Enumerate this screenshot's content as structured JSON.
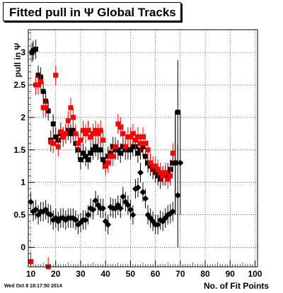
{
  "chart_data": {
    "type": "scatter",
    "title": "Fitted pull in Ψ   Global Tracks",
    "xlabel": "No. of Fit Points",
    "ylabel": "pull in Ψ",
    "footer": "Wed Oct  8 18:17:50 2014",
    "xlim": [
      9,
      101
    ],
    "ylim": [
      -0.3,
      3.35
    ],
    "xticks": [
      10,
      20,
      30,
      40,
      50,
      60,
      70,
      80,
      90,
      100
    ],
    "yticks": [
      0,
      0.5,
      1,
      1.5,
      2,
      2.5,
      3
    ],
    "grid": true,
    "series": [
      {
        "marker": "square",
        "color": "#000000",
        "points": [
          [
            10.5,
            3.0
          ],
          [
            11,
            3.03
          ],
          [
            12,
            3.05
          ],
          [
            13,
            2.65
          ],
          [
            14,
            2.62
          ],
          [
            15,
            2.4
          ],
          [
            16,
            2.25
          ],
          [
            17,
            2.1
          ],
          [
            18,
            1.65
          ],
          [
            19,
            1.9
          ],
          [
            20,
            1.7
          ],
          [
            21,
            1.65
          ],
          [
            22,
            1.75
          ],
          [
            23,
            1.7
          ],
          [
            24,
            1.75
          ],
          [
            25,
            1.8
          ],
          [
            26,
            1.75
          ],
          [
            27,
            1.8
          ],
          [
            28,
            1.6
          ],
          [
            29,
            1.5
          ],
          [
            30,
            1.35
          ],
          [
            31,
            1.45
          ],
          [
            32,
            1.4
          ],
          [
            33,
            1.35
          ],
          [
            34,
            1.45
          ],
          [
            35,
            1.5
          ],
          [
            36,
            1.55
          ],
          [
            37,
            1.5
          ],
          [
            38,
            1.5
          ],
          [
            39,
            1.35
          ],
          [
            40,
            1.3
          ],
          [
            41,
            1.4
          ],
          [
            42,
            1.45
          ],
          [
            43,
            1.55
          ],
          [
            44,
            1.5
          ],
          [
            45,
            1.5
          ],
          [
            46,
            1.45
          ],
          [
            47,
            1.55
          ],
          [
            48,
            1.5
          ],
          [
            49,
            1.5
          ],
          [
            50,
            1.5
          ],
          [
            51,
            1.55
          ],
          [
            52,
            1.55
          ],
          [
            53,
            1.45
          ],
          [
            54,
            1.5
          ],
          [
            55,
            1.55
          ],
          [
            56,
            1.4
          ],
          [
            57,
            1.3
          ],
          [
            58,
            1.25
          ],
          [
            59,
            1.2
          ],
          [
            60,
            1.15
          ],
          [
            61,
            1.1
          ],
          [
            62,
            1.05
          ],
          [
            63,
            1.1
          ],
          [
            64,
            1.1
          ],
          [
            65,
            1.15
          ],
          [
            66,
            1.2
          ],
          [
            67,
            1.3
          ],
          [
            68,
            1.3
          ],
          [
            69,
            2.08
          ]
        ]
      },
      {
        "marker": "square",
        "color": "#ff0000",
        "points": [
          [
            10,
            -0.22
          ],
          [
            12,
            2.5
          ],
          [
            13,
            2.5
          ],
          [
            14,
            2.55
          ],
          [
            15,
            2.15
          ],
          [
            16,
            2.15
          ],
          [
            17,
            -0.3
          ],
          [
            18,
            1.62
          ],
          [
            19,
            1.6
          ],
          [
            20,
            2.65
          ],
          [
            21,
            1.55
          ],
          [
            22,
            1.78
          ],
          [
            23,
            1.7
          ],
          [
            24,
            1.75
          ],
          [
            25,
            1.95
          ],
          [
            26,
            2.15
          ],
          [
            27,
            2.0
          ],
          [
            28,
            1.75
          ],
          [
            29,
            1.6
          ],
          [
            30,
            1.65
          ],
          [
            31,
            1.8
          ],
          [
            32,
            1.75
          ],
          [
            33,
            1.8
          ],
          [
            34,
            1.7
          ],
          [
            35,
            1.75
          ],
          [
            36,
            1.8
          ],
          [
            37,
            1.75
          ],
          [
            38,
            1.8
          ],
          [
            39,
            1.65
          ],
          [
            40,
            1.25
          ],
          [
            41,
            1.3
          ],
          [
            42,
            1.4
          ],
          [
            43,
            1.4
          ],
          [
            44,
            1.55
          ],
          [
            45,
            1.9
          ],
          [
            46,
            1.85
          ],
          [
            47,
            1.75
          ],
          [
            48,
            1.55
          ],
          [
            49,
            1.7
          ],
          [
            50,
            1.7
          ],
          [
            51,
            1.75
          ],
          [
            52,
            1.65
          ],
          [
            53,
            1.7
          ],
          [
            54,
            1.6
          ],
          [
            55,
            1.7
          ],
          [
            56,
            1.6
          ],
          [
            57,
            1.5
          ],
          [
            58,
            1.3
          ],
          [
            59,
            1.25
          ],
          [
            60,
            1.25
          ],
          [
            61,
            1.2
          ],
          [
            62,
            1.15
          ],
          [
            63,
            1.1
          ],
          [
            64,
            1.15
          ],
          [
            65,
            1.05
          ],
          [
            66,
            1.1
          ],
          [
            67,
            1.45
          ]
        ]
      },
      {
        "marker": "diamond",
        "color": "#000000",
        "points": [
          [
            10,
            0.7
          ],
          [
            11,
            0.55
          ],
          [
            12,
            0.58
          ],
          [
            13,
            0.5
          ],
          [
            14,
            0.55
          ],
          [
            15,
            0.55
          ],
          [
            16,
            0.58
          ],
          [
            17,
            0.52
          ],
          [
            18,
            0.5
          ],
          [
            19,
            0.42
          ],
          [
            20,
            0.45
          ],
          [
            21,
            0.4
          ],
          [
            22,
            0.45
          ],
          [
            23,
            0.45
          ],
          [
            24,
            0.42
          ],
          [
            25,
            0.45
          ],
          [
            26,
            0.45
          ],
          [
            27,
            0.45
          ],
          [
            28,
            0.42
          ],
          [
            29,
            0.35
          ],
          [
            30,
            0.38
          ],
          [
            31,
            0.42
          ],
          [
            32,
            0.42
          ],
          [
            33,
            0.5
          ],
          [
            34,
            0.6
          ],
          [
            35,
            0.58
          ],
          [
            36,
            0.72
          ],
          [
            37,
            0.65
          ],
          [
            38,
            0.6
          ],
          [
            39,
            0.6
          ],
          [
            40,
            0.4
          ],
          [
            41,
            0.35
          ],
          [
            42,
            0.62
          ],
          [
            43,
            0.6
          ],
          [
            44,
            0.6
          ],
          [
            45,
            0.65
          ],
          [
            46,
            0.6
          ],
          [
            47,
            0.78
          ],
          [
            48,
            0.7
          ],
          [
            49,
            0.65
          ],
          [
            50,
            0.58
          ],
          [
            51,
            0.5
          ],
          [
            52,
            0.9
          ],
          [
            53,
            0.92
          ],
          [
            54,
            1.15
          ],
          [
            55,
            0.85
          ],
          [
            56,
            0.75
          ],
          [
            57,
            0.5
          ],
          [
            58,
            0.45
          ],
          [
            59,
            0.4
          ],
          [
            60,
            0.35
          ],
          [
            61,
            0.35
          ],
          [
            62,
            0.42
          ],
          [
            63,
            0.4
          ],
          [
            64,
            0.45
          ],
          [
            65,
            0.5
          ],
          [
            66,
            0.52
          ],
          [
            67,
            0.55
          ],
          [
            68,
            1.3
          ],
          [
            69,
            0.8
          ],
          [
            70,
            1.3
          ]
        ]
      }
    ]
  }
}
